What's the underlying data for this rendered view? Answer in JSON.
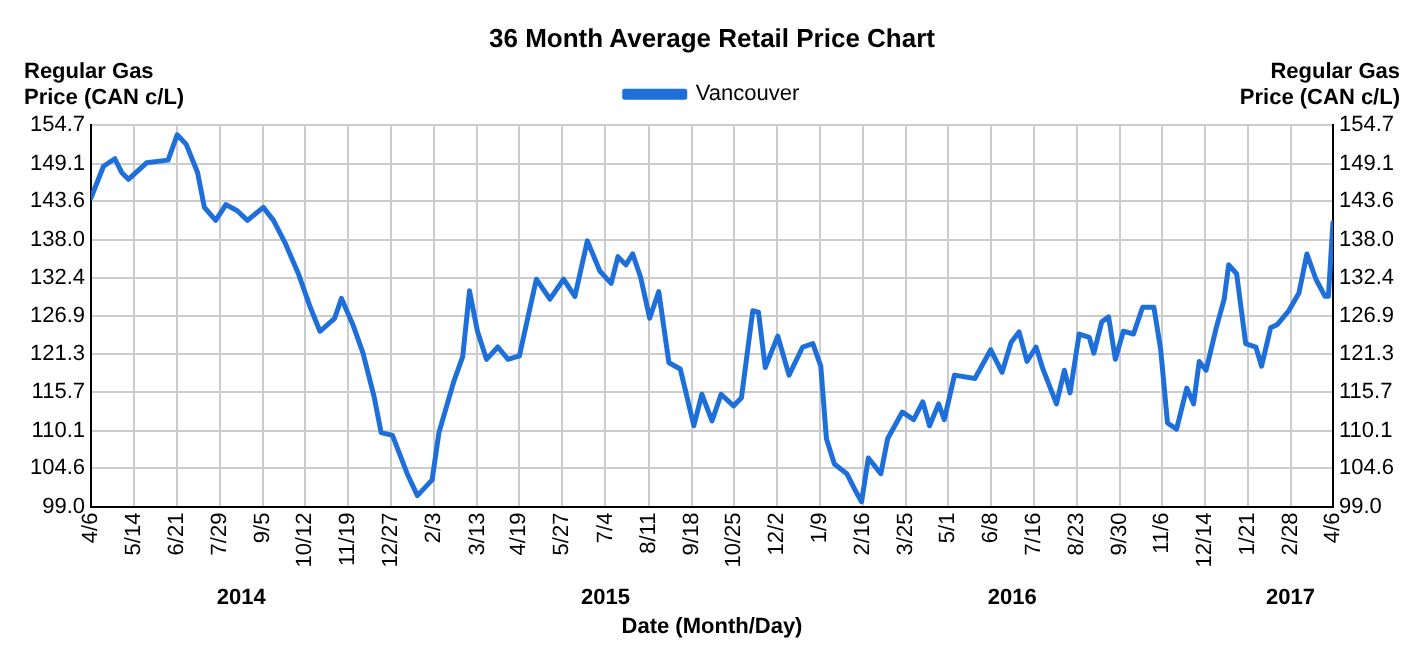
{
  "chart_data": {
    "type": "line",
    "title": "36 Month Average Retail Price Chart",
    "ylabel": "Regular Gas\nPrice (CAN c/L)",
    "y2label": "Regular Gas\nPrice (CAN c/L)",
    "xlabel": "Date (Month/Day)",
    "x": [
      "2014-04-06",
      "2014-04-17",
      "2014-04-27",
      "2014-05-03",
      "2014-05-09",
      "2014-05-25",
      "2014-06-13",
      "2014-06-21",
      "2014-06-29",
      "2014-07-09",
      "2014-07-15",
      "2014-07-25",
      "2014-08-03",
      "2014-08-13",
      "2014-08-22",
      "2014-09-05",
      "2014-09-14",
      "2014-09-24",
      "2014-10-06",
      "2014-10-16",
      "2014-10-25",
      "2014-11-07",
      "2014-11-13",
      "2014-11-23",
      "2014-12-02",
      "2014-12-12",
      "2014-12-18",
      "2014-12-28",
      "2015-01-10",
      "2015-01-19",
      "2015-02-01",
      "2015-02-07",
      "2015-02-20",
      "2015-02-28",
      "2015-03-06",
      "2015-03-13",
      "2015-03-21",
      "2015-03-31",
      "2015-04-09",
      "2015-04-19",
      "2015-04-27",
      "2015-05-04",
      "2015-05-16",
      "2015-05-28",
      "2015-06-07",
      "2015-06-18",
      "2015-06-29",
      "2015-07-09",
      "2015-07-15",
      "2015-07-22",
      "2015-07-28",
      "2015-08-04",
      "2015-08-12",
      "2015-08-20",
      "2015-08-29",
      "2015-09-08",
      "2015-09-20",
      "2015-09-27",
      "2015-10-06",
      "2015-10-14",
      "2015-10-25",
      "2015-11-01",
      "2015-11-11",
      "2015-11-16",
      "2015-11-22",
      "2015-12-03",
      "2015-12-13",
      "2015-12-25",
      "2016-01-03",
      "2016-01-10",
      "2016-01-15",
      "2016-01-22",
      "2016-02-02",
      "2016-02-09",
      "2016-02-15",
      "2016-02-21",
      "2016-03-03",
      "2016-03-09",
      "2016-03-22",
      "2016-04-01",
      "2016-04-09",
      "2016-04-15",
      "2016-04-23",
      "2016-04-28",
      "2016-05-07",
      "2016-05-25",
      "2016-06-08",
      "2016-06-18",
      "2016-06-26",
      "2016-07-03",
      "2016-07-10",
      "2016-07-18",
      "2016-07-24",
      "2016-08-05",
      "2016-08-12",
      "2016-08-17",
      "2016-08-25",
      "2016-09-03",
      "2016-09-07",
      "2016-09-14",
      "2016-09-20",
      "2016-09-26",
      "2016-10-03",
      "2016-10-12",
      "2016-10-20",
      "2016-10-30",
      "2016-11-05",
      "2016-11-11",
      "2016-11-19",
      "2016-11-28",
      "2016-12-04",
      "2016-12-09",
      "2016-12-15",
      "2016-12-24",
      "2016-12-31",
      "2017-01-04",
      "2017-01-11",
      "2017-01-19",
      "2017-01-28",
      "2017-02-02",
      "2017-02-10",
      "2017-02-16",
      "2017-02-26",
      "2017-03-07",
      "2017-03-14",
      "2017-03-22",
      "2017-03-30",
      "2017-04-02",
      "2017-04-06"
    ],
    "series": [
      {
        "name": "Vancouver",
        "color": "#1f6fdb",
        "values": [
          144.1,
          148.7,
          149.8,
          147.8,
          146.8,
          149.2,
          149.6,
          153.3,
          151.9,
          147.8,
          142.7,
          140.8,
          143.1,
          142.2,
          140.8,
          142.7,
          140.8,
          137.6,
          133.0,
          128.3,
          124.6,
          126.5,
          129.4,
          125.6,
          121.4,
          114.9,
          109.8,
          109.4,
          103.8,
          100.6,
          102.9,
          109.8,
          117.2,
          120.9,
          130.5,
          124.6,
          120.5,
          122.3,
          120.5,
          121.0,
          127.0,
          132.2,
          129.3,
          132.2,
          129.7,
          137.8,
          133.4,
          131.6,
          135.5,
          134.3,
          135.9,
          132.5,
          126.5,
          130.4,
          120.0,
          119.1,
          110.8,
          115.4,
          111.5,
          115.4,
          113.7,
          114.9,
          127.6,
          127.4,
          119.3,
          123.9,
          118.2,
          122.3,
          122.8,
          119.5,
          108.9,
          105.2,
          103.8,
          101.5,
          99.7,
          106.1,
          103.8,
          108.9,
          112.8,
          111.7,
          114.3,
          110.8,
          114.0,
          111.7,
          118.2,
          117.7,
          121.9,
          118.6,
          123.0,
          124.5,
          120.2,
          122.3,
          119.1,
          114.0,
          118.9,
          115.6,
          124.2,
          123.7,
          121.4,
          126.0,
          126.7,
          120.5,
          124.6,
          124.2,
          128.1,
          128.1,
          121.9,
          111.2,
          110.3,
          116.3,
          114.0,
          120.2,
          118.9,
          125.1,
          129.3,
          134.3,
          133.0,
          122.8,
          122.3,
          119.5,
          125.1,
          125.6,
          127.6,
          130.2,
          135.9,
          132.2,
          129.7,
          129.7,
          140.5
        ]
      }
    ],
    "xlim": [
      "2014-04-06",
      "2017-04-06"
    ],
    "xticks": [
      {
        "value": "2014-04-06",
        "label": "4/6"
      },
      {
        "value": "2014-05-14",
        "label": "5/14"
      },
      {
        "value": "2014-06-21",
        "label": "6/21"
      },
      {
        "value": "2014-07-29",
        "label": "7/29"
      },
      {
        "value": "2014-09-05",
        "label": "9/5"
      },
      {
        "value": "2014-10-12",
        "label": "10/12"
      },
      {
        "value": "2014-11-19",
        "label": "11/19"
      },
      {
        "value": "2014-12-27",
        "label": "12/27"
      },
      {
        "value": "2015-02-03",
        "label": "2/3"
      },
      {
        "value": "2015-03-13",
        "label": "3/13"
      },
      {
        "value": "2015-04-19",
        "label": "4/19"
      },
      {
        "value": "2015-05-27",
        "label": "5/27"
      },
      {
        "value": "2015-07-04",
        "label": "7/4"
      },
      {
        "value": "2015-08-11",
        "label": "8/11"
      },
      {
        "value": "2015-09-18",
        "label": "9/18"
      },
      {
        "value": "2015-10-25",
        "label": "10/25"
      },
      {
        "value": "2015-12-02",
        "label": "12/2"
      },
      {
        "value": "2016-01-09",
        "label": "1/9"
      },
      {
        "value": "2016-02-16",
        "label": "2/16"
      },
      {
        "value": "2016-03-25",
        "label": "3/25"
      },
      {
        "value": "2016-05-01",
        "label": "5/1"
      },
      {
        "value": "2016-06-08",
        "label": "6/8"
      },
      {
        "value": "2016-07-16",
        "label": "7/16"
      },
      {
        "value": "2016-08-23",
        "label": "8/23"
      },
      {
        "value": "2016-09-30",
        "label": "9/30"
      },
      {
        "value": "2016-11-06",
        "label": "11/6"
      },
      {
        "value": "2016-12-14",
        "label": "12/14"
      },
      {
        "value": "2017-01-21",
        "label": "1/21"
      },
      {
        "value": "2017-02-28",
        "label": "2/28"
      },
      {
        "value": "2017-04-06",
        "label": "4/6"
      }
    ],
    "ylim": [
      99.0,
      154.7
    ],
    "yticks": [
      {
        "value": 99.0,
        "label": "99.0"
      },
      104.6,
      110.1,
      115.7,
      121.3,
      126.9,
      132.4,
      {
        "value": 138.0,
        "label": "138.0"
      },
      143.6,
      149.1,
      154.7
    ],
    "y2lim": [
      99.0,
      154.7
    ],
    "y2ticks": [
      {
        "value": 99.0,
        "label": "99.0"
      },
      104.6,
      110.1,
      115.7,
      121.3,
      126.9,
      132.4,
      {
        "value": 138.0,
        "label": "138.0"
      },
      143.6,
      149.1,
      154.7
    ],
    "annotations": [
      "2014",
      "2015",
      "2016",
      "2017"
    ],
    "grid": true,
    "legend": "top",
    "marker": "none",
    "line_style": "solid"
  }
}
